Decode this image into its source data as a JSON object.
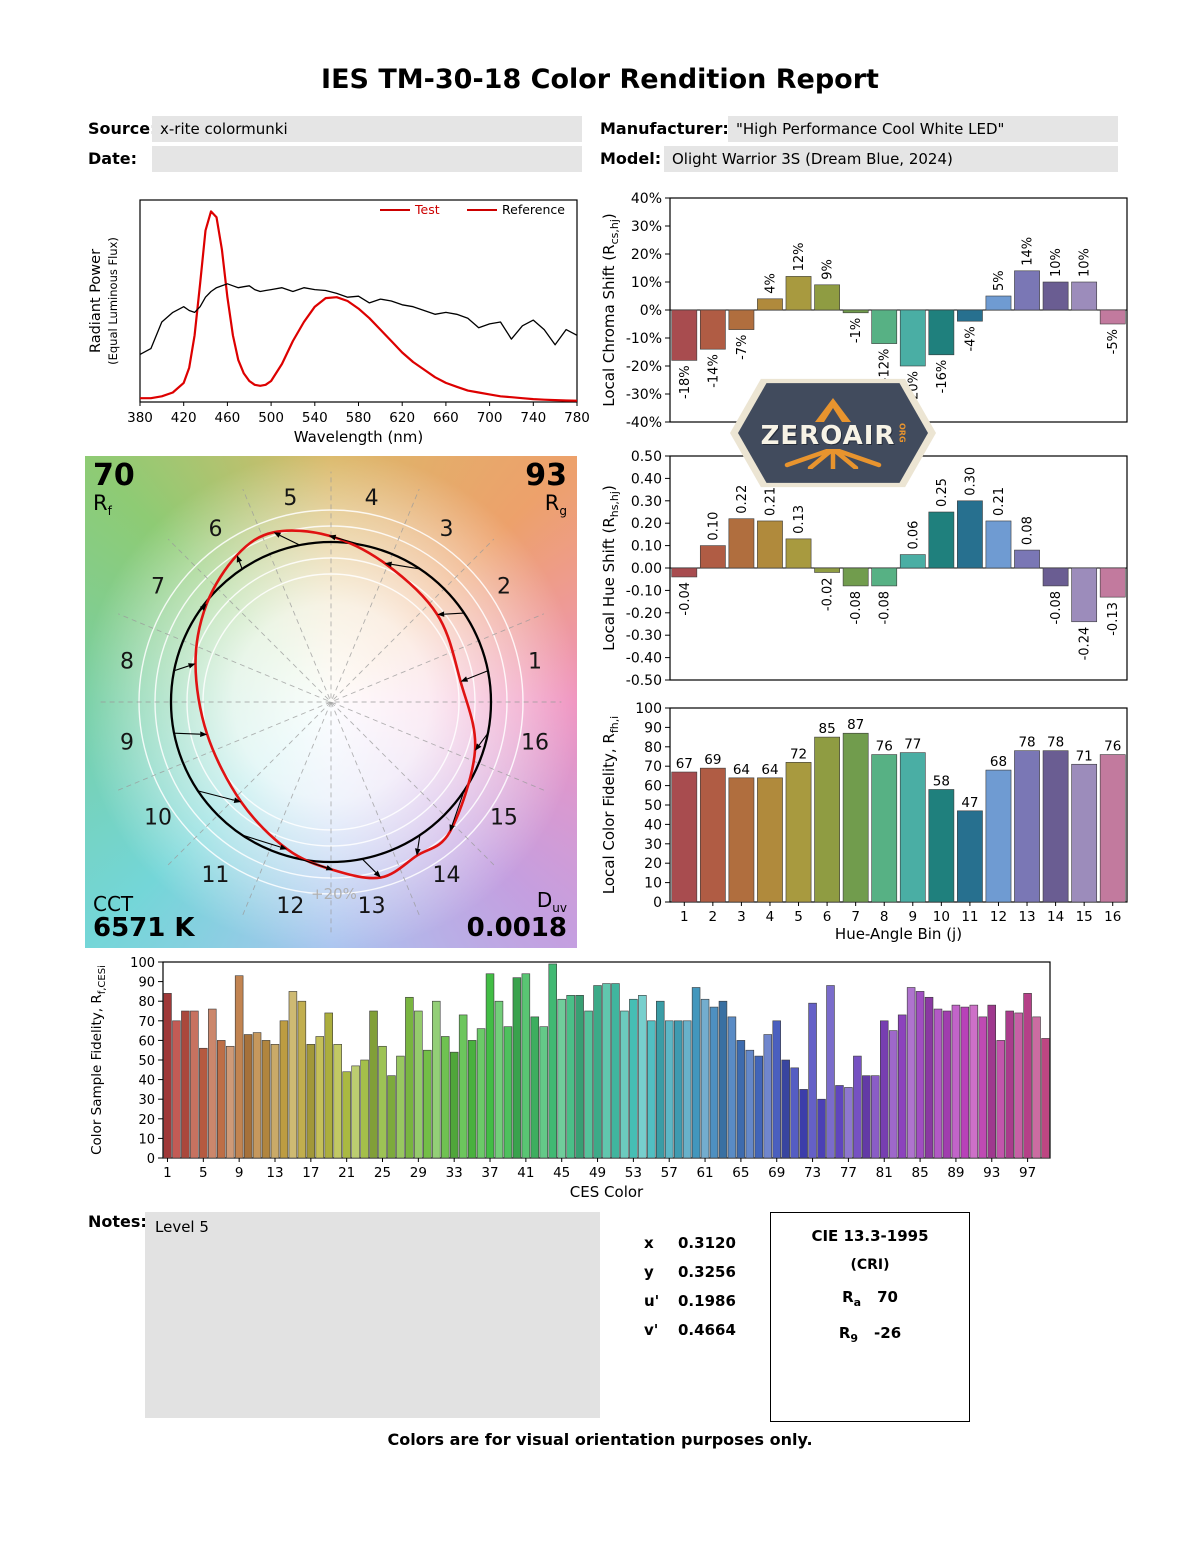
{
  "report": {
    "title": "IES TM-30-18 Color Rendition Report",
    "footer": "Colors are for visual orientation purposes only.",
    "meta": {
      "source_label": "Source:",
      "source_value": "x-rite colormunki",
      "date_label": "Date:",
      "date_value": "",
      "manufacturer_label": "Manufacturer:",
      "manufacturer_value": "\"High Performance Cool White LED\"",
      "model_label": "Model:",
      "model_value": "Olight Warrior 3S (Dream Blue, 2024)"
    },
    "notes": {
      "label": "Notes:",
      "value": "Level 5"
    },
    "chromaticity": [
      {
        "label": "x",
        "value": "0.3120"
      },
      {
        "label": "y",
        "value": "0.3256"
      },
      {
        "label": "u'",
        "value": "0.1986"
      },
      {
        "label": "v'",
        "value": "0.4664"
      }
    ],
    "cri_box": {
      "title": "CIE 13.3-1995",
      "subtitle": "(CRI)",
      "ra_label": "R",
      "ra_sub": "a",
      "ra_value": "70",
      "r9_label": "R",
      "r9_sub": "9",
      "r9_value": "-26"
    },
    "cvg": {
      "rf_value": "70",
      "rf_label": "R",
      "rf_sub": "f",
      "rg_value": "93",
      "rg_label": "R",
      "rg_sub": "g",
      "cct_label": "CCT",
      "cct_value": "6571 K",
      "duv_label": "D",
      "duv_sub": "uv",
      "duv_value": "0.0018",
      "ring_label": "+20%"
    },
    "watermark": {
      "name": "ZEROAIR",
      "org": "ORG"
    }
  },
  "hue_bin_colors": [
    "#a84c4f",
    "#b05c44",
    "#b06e3e",
    "#b08a3c",
    "#a89a3f",
    "#8f9c42",
    "#719c4d",
    "#57b184",
    "#4aaea4",
    "#1f807d",
    "#27708f",
    "#6f9bd2",
    "#7a77b5",
    "#6a5d92",
    "#9c8cbb",
    "#c27a9e"
  ],
  "chart_data": [
    {
      "id": "spd",
      "type": "line",
      "xlabel": "Wavelength (nm)",
      "ylabel": "Radiant Power",
      "ylabel2": "(Equal Luminous Flux)",
      "xlim": [
        380,
        780
      ],
      "xticks": [
        380,
        420,
        460,
        500,
        540,
        580,
        620,
        660,
        700,
        740,
        780
      ],
      "legend_position": "top-right",
      "x": [
        380,
        390,
        400,
        410,
        420,
        425,
        430,
        435,
        440,
        445,
        450,
        455,
        460,
        465,
        470,
        475,
        480,
        485,
        490,
        495,
        500,
        510,
        520,
        530,
        540,
        550,
        560,
        570,
        580,
        590,
        600,
        610,
        620,
        630,
        640,
        650,
        660,
        670,
        680,
        690,
        700,
        710,
        720,
        730,
        740,
        750,
        760,
        770,
        780
      ],
      "series": [
        {
          "name": "Test",
          "color": "#dd0000",
          "values": [
            0.02,
            0.02,
            0.03,
            0.05,
            0.1,
            0.18,
            0.35,
            0.62,
            0.9,
            1.0,
            0.97,
            0.8,
            0.55,
            0.35,
            0.22,
            0.15,
            0.11,
            0.09,
            0.085,
            0.09,
            0.11,
            0.2,
            0.32,
            0.42,
            0.5,
            0.545,
            0.55,
            0.53,
            0.49,
            0.44,
            0.38,
            0.32,
            0.26,
            0.21,
            0.17,
            0.13,
            0.1,
            0.08,
            0.06,
            0.05,
            0.04,
            0.03,
            0.025,
            0.02,
            0.015,
            0.012,
            0.01,
            0.008,
            0.007
          ]
        },
        {
          "name": "Reference",
          "color": "#000000",
          "values": [
            0.25,
            0.28,
            0.42,
            0.47,
            0.5,
            0.48,
            0.47,
            0.5,
            0.55,
            0.58,
            0.6,
            0.61,
            0.62,
            0.61,
            0.6,
            0.605,
            0.61,
            0.59,
            0.58,
            0.585,
            0.59,
            0.6,
            0.58,
            0.6,
            0.59,
            0.585,
            0.57,
            0.55,
            0.555,
            0.52,
            0.54,
            0.53,
            0.51,
            0.5,
            0.48,
            0.46,
            0.47,
            0.46,
            0.44,
            0.39,
            0.41,
            0.42,
            0.33,
            0.4,
            0.43,
            0.38,
            0.3,
            0.38,
            0.35
          ]
        }
      ]
    },
    {
      "id": "chroma_shift",
      "type": "bar",
      "ylabel_pre": "Local Chroma Shift (R",
      "ylabel_sub": "cs,hj",
      "ylabel_post": ")",
      "ylim": [
        -40,
        40
      ],
      "ytick_step": 10,
      "unit": "%",
      "categories": [
        1,
        2,
        3,
        4,
        5,
        6,
        7,
        8,
        9,
        10,
        11,
        12,
        13,
        14,
        15,
        16
      ],
      "values": [
        -18,
        -14,
        -7,
        4,
        12,
        9,
        -1,
        -12,
        -20,
        -16,
        -4,
        5,
        14,
        10,
        10,
        -5
      ]
    },
    {
      "id": "hue_shift",
      "type": "bar",
      "ylabel_pre": "Local Hue Shift (R",
      "ylabel_sub": "hs,hj",
      "ylabel_post": ")",
      "ylim": [
        -0.5,
        0.5
      ],
      "ytick_step": 0.1,
      "categories": [
        1,
        2,
        3,
        4,
        5,
        6,
        7,
        8,
        9,
        10,
        11,
        12,
        13,
        14,
        15,
        16
      ],
      "values": [
        -0.04,
        0.1,
        0.22,
        0.21,
        0.13,
        -0.02,
        -0.08,
        -0.08,
        0.06,
        0.25,
        0.3,
        0.21,
        0.08,
        -0.08,
        -0.24,
        -0.13
      ]
    },
    {
      "id": "local_fidelity",
      "type": "bar",
      "ylabel_pre": "Local Color Fidelity, R",
      "ylabel_sub": "fh,i",
      "ylabel_post": "",
      "xlabel": "Hue-Angle Bin (j)",
      "ylim": [
        0,
        100
      ],
      "ytick_step": 10,
      "categories": [
        1,
        2,
        3,
        4,
        5,
        6,
        7,
        8,
        9,
        10,
        11,
        12,
        13,
        14,
        15,
        16
      ],
      "values": [
        67,
        69,
        64,
        64,
        72,
        85,
        87,
        76,
        77,
        58,
        47,
        68,
        78,
        78,
        71,
        76
      ]
    },
    {
      "id": "ces_fidelity",
      "type": "bar",
      "ylabel_pre": "Color Sample Fidelity, R",
      "ylabel_sub": "f,CESi",
      "ylabel_post": "",
      "xlabel": "CES Color",
      "ylim": [
        0,
        100
      ],
      "ytick_step": 10,
      "categories": [
        1,
        2,
        3,
        4,
        5,
        6,
        7,
        8,
        9,
        10,
        11,
        12,
        13,
        14,
        15,
        16,
        17,
        18,
        19,
        20,
        21,
        22,
        23,
        24,
        25,
        26,
        27,
        28,
        29,
        30,
        31,
        32,
        33,
        34,
        35,
        36,
        37,
        38,
        39,
        40,
        41,
        42,
        43,
        44,
        45,
        46,
        47,
        48,
        49,
        50,
        51,
        52,
        53,
        54,
        55,
        56,
        57,
        58,
        59,
        60,
        61,
        62,
        63,
        64,
        65,
        66,
        67,
        68,
        69,
        70,
        71,
        72,
        73,
        74,
        75,
        76,
        77,
        78,
        79,
        80,
        81,
        82,
        83,
        84,
        85,
        86,
        87,
        88,
        89,
        90,
        91,
        92,
        93,
        94,
        95,
        96,
        97,
        98,
        99
      ],
      "values": [
        84,
        70,
        75,
        75,
        56,
        76,
        60,
        57,
        93,
        63,
        64,
        60,
        58,
        70,
        85,
        80,
        58,
        62,
        74,
        58,
        44,
        47,
        50,
        75,
        57,
        42,
        52,
        82,
        75,
        55,
        80,
        62,
        54,
        73,
        60,
        66,
        94,
        80,
        67,
        92,
        94,
        72,
        67,
        99,
        81,
        83,
        83,
        75,
        88,
        89,
        89,
        75,
        81,
        83,
        70,
        80,
        70,
        70,
        70,
        87,
        81,
        77,
        80,
        72,
        60,
        55,
        52,
        63,
        70,
        50,
        46,
        35,
        79,
        30,
        88,
        37,
        36,
        52,
        42,
        42,
        70,
        65,
        73,
        87,
        85,
        82,
        76,
        75,
        78,
        77,
        78,
        72,
        78,
        60,
        75,
        74,
        84,
        72,
        61
      ]
    },
    {
      "id": "cvg",
      "type": "vector",
      "rf": 70,
      "rg": 93,
      "cct_k": 6571,
      "duv": 0.0018,
      "rcs_pct": [
        -18,
        -14,
        -7,
        4,
        12,
        9,
        -1,
        -12,
        -20,
        -16,
        -4,
        5,
        14,
        10,
        10,
        -5
      ],
      "rhs": [
        -0.04,
        0.1,
        0.22,
        0.21,
        0.13,
        -0.02,
        -0.08,
        -0.08,
        0.06,
        0.25,
        0.3,
        0.21,
        0.08,
        -0.08,
        -0.24,
        -0.13
      ]
    }
  ]
}
